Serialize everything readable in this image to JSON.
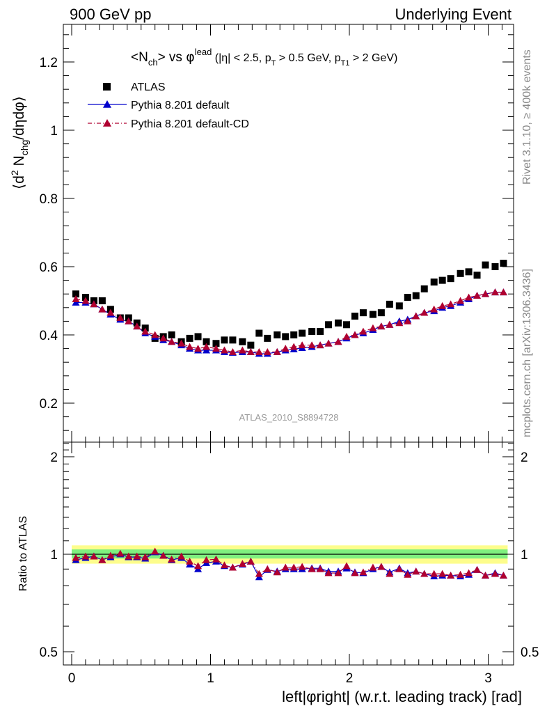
{
  "header": {
    "left": "900 GeV pp",
    "right": "Underlying Event"
  },
  "side_labels": {
    "rivet": "Rivet 3.1.10, ≥ 400k events",
    "mcplots": "mcplots.cern.ch [arXiv:1306.3436]"
  },
  "watermark": "ATLAS_2010_S8894728",
  "colors": {
    "atlas": "#000000",
    "pythia_default": "#0000cc",
    "pythia_cd": "#b00030",
    "band_inner": "#7ff07f",
    "band_outer": "#fdfd8c"
  },
  "chart_data": [
    {
      "type": "scatter",
      "title": "<N_ch> vs φ^lead (|η| < 2.5, p_T > 0.5 GeV, p_T1 > 2 GeV)",
      "ylabel": "⟨d² N_chg/dηdφ⟩",
      "xlabel": "left|φright| (w.r.t. leading track) [rad]",
      "xlim": [
        -0.05,
        3.2
      ],
      "ylim": [
        0.1,
        1.32
      ],
      "yticks": [
        0.2,
        0.4,
        0.6,
        0.8,
        1,
        1.2
      ],
      "xticks": [
        0,
        1,
        2,
        3
      ],
      "x": [
        0.03,
        0.1,
        0.16,
        0.22,
        0.28,
        0.35,
        0.41,
        0.47,
        0.53,
        0.6,
        0.66,
        0.72,
        0.79,
        0.85,
        0.91,
        0.97,
        1.04,
        1.1,
        1.16,
        1.23,
        1.29,
        1.35,
        1.41,
        1.48,
        1.54,
        1.6,
        1.66,
        1.73,
        1.79,
        1.85,
        1.92,
        1.98,
        2.04,
        2.1,
        2.17,
        2.23,
        2.29,
        2.36,
        2.42,
        2.48,
        2.54,
        2.61,
        2.67,
        2.73,
        2.8,
        2.86,
        2.92,
        2.98,
        3.05,
        3.11
      ],
      "series": [
        {
          "name": "ATLAS",
          "values": [
            0.52,
            0.51,
            0.5,
            0.5,
            0.475,
            0.45,
            0.45,
            0.435,
            0.42,
            0.39,
            0.395,
            0.4,
            0.38,
            0.39,
            0.395,
            0.38,
            0.375,
            0.385,
            0.385,
            0.38,
            0.37,
            0.405,
            0.39,
            0.4,
            0.395,
            0.4,
            0.405,
            0.41,
            0.41,
            0.43,
            0.435,
            0.43,
            0.455,
            0.465,
            0.46,
            0.465,
            0.49,
            0.485,
            0.51,
            0.515,
            0.535,
            0.555,
            0.56,
            0.565,
            0.58,
            0.585,
            0.575,
            0.605,
            0.6,
            0.61
          ]
        },
        {
          "name": "Pythia 8.201 default",
          "values": [
            0.495,
            0.495,
            0.49,
            0.475,
            0.46,
            0.445,
            0.44,
            0.425,
            0.405,
            0.395,
            0.385,
            0.38,
            0.37,
            0.36,
            0.355,
            0.355,
            0.355,
            0.35,
            0.348,
            0.35,
            0.35,
            0.345,
            0.345,
            0.35,
            0.355,
            0.358,
            0.362,
            0.365,
            0.37,
            0.375,
            0.38,
            0.39,
            0.4,
            0.405,
            0.415,
            0.425,
            0.43,
            0.44,
            0.445,
            0.455,
            0.465,
            0.47,
            0.48,
            0.485,
            0.495,
            0.505,
            0.515,
            0.52,
            0.525,
            0.525
          ]
        },
        {
          "name": "Pythia 8.201 default-CD",
          "values": [
            0.505,
            0.5,
            0.49,
            0.475,
            0.465,
            0.45,
            0.44,
            0.425,
            0.41,
            0.4,
            0.39,
            0.38,
            0.375,
            0.365,
            0.36,
            0.365,
            0.36,
            0.355,
            0.35,
            0.355,
            0.35,
            0.35,
            0.35,
            0.35,
            0.36,
            0.365,
            0.37,
            0.37,
            0.37,
            0.375,
            0.38,
            0.395,
            0.4,
            0.41,
            0.42,
            0.425,
            0.43,
            0.435,
            0.44,
            0.455,
            0.465,
            0.475,
            0.485,
            0.49,
            0.5,
            0.51,
            0.515,
            0.52,
            0.525,
            0.525
          ]
        }
      ]
    },
    {
      "type": "scatter",
      "ylabel": "Ratio to ATLAS",
      "ylim": [
        0.4,
        2.3
      ],
      "yticks": [
        0.5,
        1,
        2
      ],
      "ytick_labels": [
        "0.5",
        "1",
        "2"
      ],
      "xticks": [
        0,
        1,
        2,
        3
      ],
      "band_inner": [
        0.97,
        1.035
      ],
      "band_outer": [
        0.935,
        1.065
      ],
      "series": [
        {
          "name": "Pythia 8.201 default",
          "values": [
            0.96,
            0.975,
            0.985,
            0.96,
            0.98,
            1.0,
            0.98,
            0.98,
            0.97,
            1.015,
            0.99,
            0.96,
            0.975,
            0.93,
            0.9,
            0.94,
            0.95,
            0.92,
            0.91,
            0.93,
            0.95,
            0.85,
            0.895,
            0.885,
            0.9,
            0.9,
            0.9,
            0.905,
            0.905,
            0.885,
            0.885,
            0.905,
            0.88,
            0.875,
            0.9,
            0.915,
            0.88,
            0.905,
            0.875,
            0.885,
            0.87,
            0.855,
            0.86,
            0.86,
            0.855,
            0.865,
            0.895,
            0.86,
            0.875,
            0.86
          ]
        },
        {
          "name": "Pythia 8.201 default-CD",
          "values": [
            0.975,
            0.985,
            0.985,
            0.96,
            0.99,
            1.005,
            0.985,
            0.985,
            0.98,
            1.02,
            0.99,
            0.965,
            0.985,
            0.95,
            0.92,
            0.96,
            0.965,
            0.925,
            0.91,
            0.935,
            0.95,
            0.87,
            0.9,
            0.88,
            0.91,
            0.91,
            0.915,
            0.9,
            0.9,
            0.875,
            0.875,
            0.92,
            0.875,
            0.88,
            0.91,
            0.915,
            0.87,
            0.9,
            0.865,
            0.885,
            0.87,
            0.87,
            0.87,
            0.86,
            0.865,
            0.875,
            0.895,
            0.86,
            0.87,
            0.86
          ]
        }
      ]
    }
  ],
  "legend": [
    {
      "label": "ATLAS",
      "marker": "square"
    },
    {
      "label": "Pythia 8.201 default",
      "marker": "triangle",
      "line": "solid"
    },
    {
      "label": "Pythia 8.201 default-CD",
      "marker": "triangle",
      "line": "dashdot"
    }
  ]
}
